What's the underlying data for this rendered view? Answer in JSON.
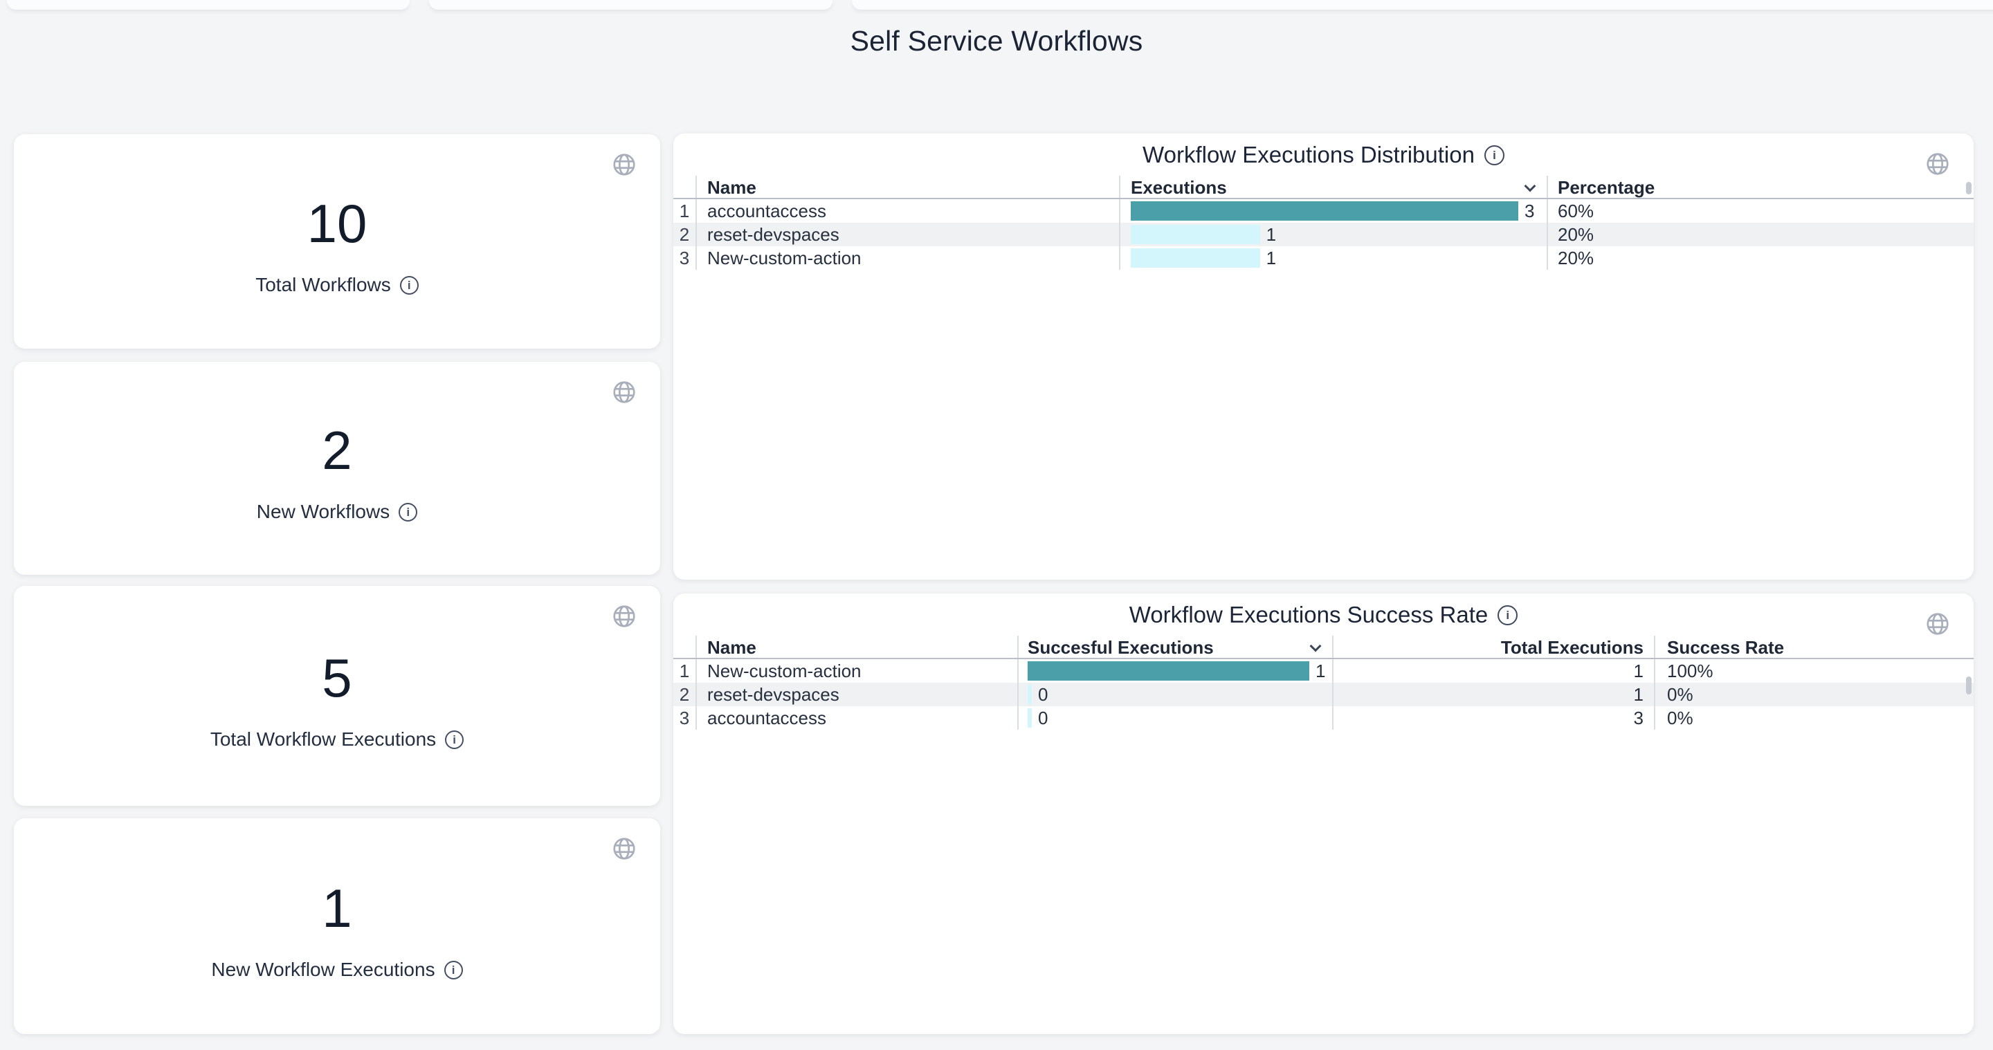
{
  "page": {
    "title": "Self Service Workflows"
  },
  "colors": {
    "page_bg": "#f4f5f7",
    "bar_primary": "#4a9fa8",
    "bar_secondary": "#d2f6fb",
    "title_text": "#1a2435"
  },
  "stat_cards": [
    {
      "value": "10",
      "label": "Total Workflows"
    },
    {
      "value": "2",
      "label": "New Workflows"
    },
    {
      "value": "5",
      "label": "Total Workflow Executions"
    },
    {
      "value": "1",
      "label": "New Workflow Executions"
    }
  ],
  "distribution_table": {
    "title": "Workflow Executions Distribution",
    "columns": [
      "Name",
      "Executions",
      "Percentage"
    ],
    "sorted_column": "Executions",
    "max": 3,
    "rows": [
      {
        "index": "1",
        "name": "accountaccess",
        "executions": 3,
        "executions_label": "3",
        "percentage": "60%"
      },
      {
        "index": "2",
        "name": "reset-devspaces",
        "executions": 1,
        "executions_label": "1",
        "percentage": "20%"
      },
      {
        "index": "3",
        "name": "New-custom-action",
        "executions": 1,
        "executions_label": "1",
        "percentage": "20%"
      }
    ]
  },
  "success_table": {
    "title": "Workflow Executions Success Rate",
    "columns": [
      "Name",
      "Succesful Executions",
      "Total Executions",
      "Success Rate"
    ],
    "sorted_column": "Succesful Executions",
    "max": 1,
    "rows": [
      {
        "index": "1",
        "name": "New-custom-action",
        "successful": 1,
        "successful_label": "1",
        "total": "1",
        "rate": "100%"
      },
      {
        "index": "2",
        "name": "reset-devspaces",
        "successful": 0,
        "successful_label": "0",
        "total": "1",
        "rate": "0%"
      },
      {
        "index": "3",
        "name": "accountaccess",
        "successful": 0,
        "successful_label": "0",
        "total": "3",
        "rate": "0%"
      }
    ]
  },
  "chart_data": [
    {
      "type": "bar",
      "orientation": "horizontal",
      "title": "Workflow Executions Distribution",
      "categories": [
        "accountaccess",
        "reset-devspaces",
        "New-custom-action"
      ],
      "values": [
        3,
        1,
        1
      ],
      "percentages": [
        "60%",
        "20%",
        "20%"
      ],
      "xlim": [
        0,
        3.3
      ],
      "legend": "none",
      "grid": "off"
    },
    {
      "type": "bar",
      "orientation": "horizontal",
      "title": "Workflow Executions Success Rate",
      "categories": [
        "New-custom-action",
        "reset-devspaces",
        "accountaccess"
      ],
      "values": [
        1,
        0,
        0
      ],
      "totals": [
        1,
        1,
        3
      ],
      "rates": [
        "100%",
        "0%",
        "0%"
      ],
      "xlim": [
        0,
        1.1
      ],
      "legend": "none",
      "grid": "off"
    }
  ]
}
